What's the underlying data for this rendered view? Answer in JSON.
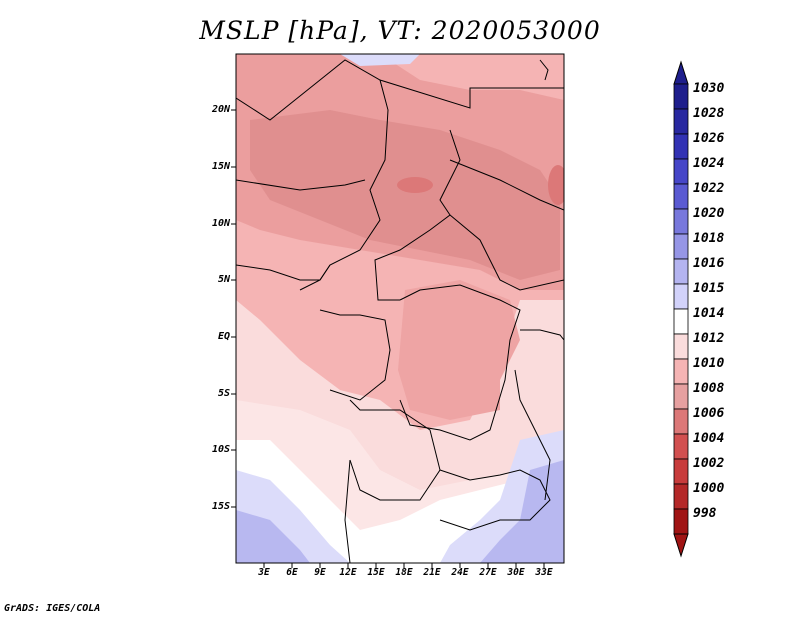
{
  "title": "MSLP [hPa], VT: 2020053000",
  "footer": "GrADS: IGES/COLA",
  "map": {
    "lat_labels": [
      "20N",
      "15N",
      "10N",
      "5N",
      "EQ",
      "5S",
      "10S",
      "15S"
    ],
    "lon_labels": [
      "3E",
      "6E",
      "9E",
      "12E",
      "15E",
      "18E",
      "21E",
      "24E",
      "27E",
      "30E",
      "33E"
    ]
  },
  "colorbar": {
    "labels": [
      "1030",
      "1028",
      "1026",
      "1024",
      "1022",
      "1020",
      "1018",
      "1016",
      "1015",
      "1014",
      "1012",
      "1010",
      "1008",
      "1006",
      "1004",
      "1002",
      "1000",
      "998"
    ],
    "colors": [
      "#1e1e8c",
      "#2828a0",
      "#3232b4",
      "#4646c8",
      "#5a5ad2",
      "#7878dc",
      "#9696e6",
      "#b4b4f0",
      "#d2d2fa",
      "#ffffff",
      "#fadcdc",
      "#f5b4b4",
      "#e6a0a0",
      "#dc7878",
      "#d25050",
      "#c83c3c",
      "#b42828",
      "#a01414"
    ]
  }
}
